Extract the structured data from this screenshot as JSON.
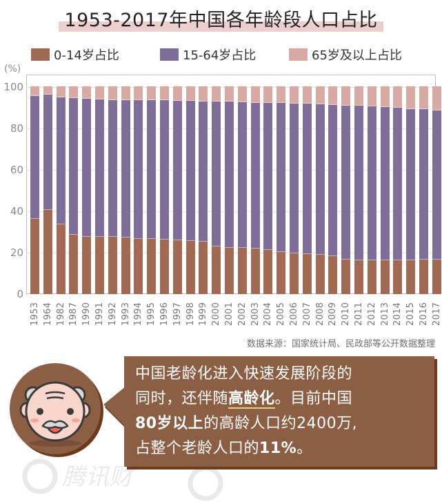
{
  "title": "1953-2017年中国各年龄段人口占比",
  "legend": [
    {
      "label": "0-14岁占比",
      "color": "#a06b52"
    },
    {
      "label": "15-64岁占比",
      "color": "#7f6f98"
    },
    {
      "label": "65岁及以上占比",
      "color": "#d9a9a4"
    }
  ],
  "source": "数据来源：国家统计局、民政部等公开数据整理",
  "callout": {
    "line1": "中国老龄化进入快速发展阶段的",
    "line2_a": "同时，还伴随",
    "line2_bold": "高龄化",
    "line2_b": "。目前中国",
    "line3_bold": "80岁以上",
    "line3_b": "的高龄人口约2400万,",
    "line4_a": "占整个老龄人口的",
    "line4_bold": "11%",
    "line4_b": "。"
  },
  "colors": {
    "age_0_14": "#a06b52",
    "age_15_64": "#7f6f98",
    "age_65_plus": "#d9a9a4",
    "callout_bg": "#8c5e44",
    "callout_shadow": "#6b3a1c",
    "title_highlight": "#eccfcd"
  },
  "chart_data": {
    "type": "bar",
    "stacked": true,
    "title": "1953-2017年中国各年龄段人口占比",
    "xlabel": "",
    "ylabel": "(%)",
    "ylim": [
      0,
      100
    ],
    "yticks": [
      0,
      20,
      40,
      60,
      80,
      100
    ],
    "grid": true,
    "legend_position": "top",
    "categories": [
      "1953",
      "1964",
      "1982",
      "1987",
      "1990",
      "1991",
      "1992",
      "1993",
      "1994",
      "1995",
      "1996",
      "1997",
      "1998",
      "1999",
      "2000",
      "2001",
      "2002",
      "2003",
      "2004",
      "2005",
      "2006",
      "2007",
      "2008",
      "2009",
      "2010",
      "2011",
      "2012",
      "2013",
      "2014",
      "2015",
      "2016",
      "2017"
    ],
    "series": [
      {
        "name": "0-14岁占比",
        "values": [
          36.3,
          40.7,
          33.6,
          28.7,
          27.7,
          27.7,
          27.6,
          27.2,
          26.8,
          26.6,
          26.4,
          26.0,
          25.7,
          25.4,
          22.9,
          22.5,
          22.4,
          22.1,
          21.5,
          20.3,
          19.8,
          19.4,
          19.0,
          18.5,
          16.6,
          16.5,
          16.5,
          16.4,
          16.5,
          16.5,
          16.7,
          16.8
        ]
      },
      {
        "name": "15-64岁占比",
        "values": [
          59.3,
          55.7,
          61.5,
          65.9,
          66.7,
          66.3,
          66.2,
          66.6,
          66.8,
          67.2,
          67.2,
          67.5,
          67.6,
          67.7,
          70.1,
          70.4,
          70.3,
          70.4,
          70.9,
          72.0,
          72.3,
          72.5,
          72.7,
          73.0,
          74.5,
          74.4,
          74.1,
          73.9,
          73.4,
          73.0,
          72.5,
          71.8
        ]
      },
      {
        "name": "65岁及以上占比",
        "values": [
          4.4,
          3.6,
          4.9,
          5.4,
          5.6,
          6.0,
          6.2,
          6.2,
          6.4,
          6.2,
          6.4,
          6.5,
          6.7,
          6.9,
          7.0,
          7.1,
          7.3,
          7.5,
          7.6,
          7.7,
          7.9,
          8.1,
          8.3,
          8.5,
          8.9,
          9.1,
          9.4,
          9.7,
          10.1,
          10.5,
          10.8,
          11.4
        ]
      }
    ]
  }
}
